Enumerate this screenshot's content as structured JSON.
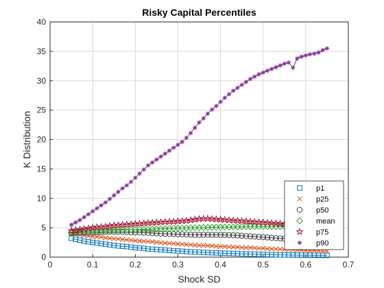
{
  "chart_data": {
    "type": "line",
    "title": "Risky Capital Percentiles",
    "xlabel": "Shock SD",
    "ylabel": "K Distribution",
    "xlim": [
      0,
      0.7
    ],
    "ylim": [
      0,
      40
    ],
    "xticks": [
      "0",
      "0.1",
      "0.2",
      "0.3",
      "0.4",
      "0.5",
      "0.6",
      "0.7"
    ],
    "yticks": [
      "0",
      "5",
      "10",
      "15",
      "20",
      "25",
      "30",
      "35",
      "40"
    ],
    "grid": true,
    "legend_position": "bottom-right",
    "x": [
      0.05,
      0.06,
      0.07,
      0.08,
      0.09,
      0.1,
      0.11,
      0.12,
      0.13,
      0.14,
      0.15,
      0.16,
      0.17,
      0.18,
      0.19,
      0.2,
      0.21,
      0.22,
      0.23,
      0.24,
      0.25,
      0.26,
      0.27,
      0.28,
      0.29,
      0.3,
      0.31,
      0.32,
      0.33,
      0.34,
      0.35,
      0.36,
      0.37,
      0.38,
      0.39,
      0.4,
      0.41,
      0.42,
      0.43,
      0.44,
      0.45,
      0.46,
      0.47,
      0.48,
      0.49,
      0.5,
      0.51,
      0.52,
      0.53,
      0.54,
      0.55,
      0.56,
      0.57,
      0.58,
      0.59,
      0.6,
      0.61,
      0.62,
      0.63,
      0.64,
      0.65
    ],
    "series": [
      {
        "name": "p1",
        "color": "#0072BD",
        "marker": "square",
        "values": [
          3.2,
          3.0,
          2.9,
          2.7,
          2.6,
          2.5,
          2.4,
          2.3,
          2.2,
          2.1,
          2.0,
          1.9,
          1.85,
          1.8,
          1.7,
          1.6,
          1.55,
          1.5,
          1.4,
          1.35,
          1.3,
          1.25,
          1.2,
          1.15,
          1.1,
          1.05,
          1.0,
          0.95,
          0.9,
          0.88,
          0.85,
          0.8,
          0.78,
          0.75,
          0.72,
          0.7,
          0.67,
          0.65,
          0.62,
          0.6,
          0.57,
          0.55,
          0.52,
          0.5,
          0.48,
          0.46,
          0.44,
          0.42,
          0.4,
          0.39,
          0.38,
          0.37,
          0.36,
          0.35,
          0.34,
          0.33,
          0.32,
          0.31,
          0.3,
          0.3,
          0.3
        ]
      },
      {
        "name": "p25",
        "color": "#D95319",
        "marker": "x",
        "values": [
          4.0,
          3.9,
          3.8,
          3.7,
          3.6,
          3.5,
          3.45,
          3.4,
          3.3,
          3.2,
          3.15,
          3.1,
          3.0,
          2.95,
          2.9,
          2.8,
          2.75,
          2.7,
          2.65,
          2.6,
          2.5,
          2.45,
          2.4,
          2.35,
          2.3,
          2.25,
          2.2,
          2.15,
          2.1,
          2.05,
          2.0,
          2.0,
          1.95,
          1.9,
          1.85,
          1.8,
          1.8,
          1.75,
          1.7,
          1.7,
          1.65,
          1.6,
          1.6,
          1.55,
          1.5,
          1.5,
          1.45,
          1.4,
          1.4,
          1.35,
          1.3,
          1.3,
          1.25,
          1.2,
          1.2,
          1.15,
          1.1,
          1.1,
          1.05,
          1.0,
          1.0
        ]
      },
      {
        "name": "p50",
        "color": "#404040",
        "marker": "circle",
        "values": [
          4.1,
          4.12,
          4.15,
          4.17,
          4.2,
          4.22,
          4.25,
          4.27,
          4.3,
          4.3,
          4.3,
          4.3,
          4.3,
          4.28,
          4.25,
          4.22,
          4.2,
          4.18,
          4.15,
          4.1,
          4.05,
          4.0,
          3.97,
          3.95,
          3.92,
          3.9,
          3.88,
          3.85,
          3.83,
          3.8,
          3.8,
          3.8,
          3.8,
          3.8,
          3.8,
          3.8,
          3.78,
          3.75,
          3.72,
          3.7,
          3.65,
          3.6,
          3.55,
          3.5,
          3.45,
          3.4,
          3.35,
          3.3,
          3.25,
          3.2,
          3.15,
          3.1,
          3.05,
          3.0,
          2.9,
          2.8,
          2.7,
          2.6,
          2.5,
          2.45,
          2.4
        ]
      },
      {
        "name": "mean",
        "color": "#2CA02C",
        "marker": "diamond",
        "values": [
          4.2,
          4.25,
          4.3,
          4.35,
          4.4,
          4.42,
          4.45,
          4.48,
          4.5,
          4.52,
          4.55,
          4.58,
          4.6,
          4.62,
          4.65,
          4.67,
          4.7,
          4.72,
          4.75,
          4.77,
          4.8,
          4.82,
          4.85,
          4.87,
          4.9,
          4.92,
          4.95,
          4.97,
          5.0,
          5.0,
          5.02,
          5.05,
          5.05,
          5.07,
          5.1,
          5.1,
          5.1,
          5.12,
          5.15,
          5.15,
          5.15,
          5.17,
          5.2,
          5.2,
          5.2,
          5.2,
          5.2,
          5.2,
          5.2,
          5.2,
          5.2,
          5.2,
          5.18,
          5.15,
          5.12,
          5.1,
          5.08,
          5.05,
          5.03,
          5.0,
          5.0
        ]
      },
      {
        "name": "p75",
        "color": "#A2142F",
        "marker": "pentagram",
        "values": [
          4.5,
          4.6,
          4.7,
          4.8,
          4.9,
          5.0,
          5.1,
          5.15,
          5.2,
          5.3,
          5.4,
          5.45,
          5.5,
          5.55,
          5.6,
          5.65,
          5.7,
          5.75,
          5.8,
          5.85,
          5.9,
          5.95,
          6.0,
          6.0,
          6.05,
          6.1,
          6.15,
          6.2,
          6.3,
          6.4,
          6.5,
          6.55,
          6.55,
          6.5,
          6.45,
          6.4,
          6.35,
          6.3,
          6.25,
          6.2,
          6.15,
          6.1,
          6.05,
          6.0,
          5.95,
          5.9,
          5.85,
          5.8,
          5.75,
          5.7,
          5.6,
          5.5,
          5.4,
          5.3,
          5.2,
          5.1,
          5.0,
          4.9,
          4.8,
          4.7,
          4.6
        ]
      },
      {
        "name": "p90",
        "color": "#7E2F8E",
        "marker": "asterisk",
        "values": [
          5.5,
          5.9,
          6.3,
          6.8,
          7.3,
          7.8,
          8.3,
          8.8,
          9.3,
          9.9,
          10.5,
          11.1,
          11.7,
          12.2,
          12.8,
          13.5,
          14.2,
          14.9,
          15.6,
          16.1,
          16.6,
          17.1,
          17.6,
          18.1,
          18.6,
          19.1,
          19.6,
          20.3,
          21.1,
          22.0,
          22.9,
          23.6,
          24.4,
          25.1,
          25.7,
          26.4,
          27.1,
          27.7,
          28.3,
          28.8,
          29.3,
          29.8,
          30.3,
          30.7,
          31.1,
          31.4,
          31.7,
          32.0,
          32.3,
          32.6,
          32.9,
          33.1,
          32.2,
          33.8,
          34.1,
          34.3,
          34.5,
          34.6,
          34.8,
          35.2,
          35.5
        ]
      }
    ]
  }
}
